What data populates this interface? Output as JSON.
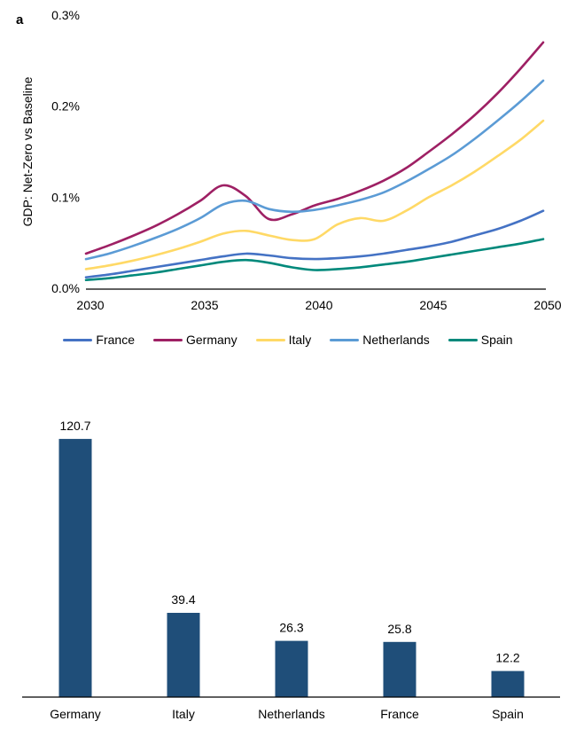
{
  "panel_label": "a",
  "chart_data": [
    {
      "type": "line",
      "title": "",
      "xlabel": "",
      "ylabel": "GDP: Net-Zero vs Baseline",
      "x": [
        2030,
        2031,
        2032,
        2033,
        2034,
        2035,
        2036,
        2037,
        2038,
        2039,
        2040,
        2041,
        2042,
        2043,
        2044,
        2045,
        2046,
        2047,
        2048,
        2049,
        2050
      ],
      "x_tick_values": [
        2030,
        2035,
        2040,
        2045,
        2050
      ],
      "x_tick_labels": [
        "2030",
        "2035",
        "2040",
        "2045",
        "2050"
      ],
      "y_tick_values": [
        0,
        0.1,
        0.2,
        0.3
      ],
      "y_tick_labels": [
        "0.0%",
        "0.1%",
        "0.2%",
        "0.3%"
      ],
      "ylim": [
        0,
        0.3
      ],
      "grid": false,
      "legend_position": "bottom",
      "series": [
        {
          "name": "France",
          "color": "#4472C4",
          "values": [
            0.012,
            0.015,
            0.019,
            0.023,
            0.027,
            0.031,
            0.035,
            0.038,
            0.036,
            0.033,
            0.032,
            0.033,
            0.035,
            0.038,
            0.042,
            0.046,
            0.051,
            0.058,
            0.065,
            0.074,
            0.085
          ]
        },
        {
          "name": "Germany",
          "color": "#9E2064",
          "values": [
            0.038,
            0.047,
            0.057,
            0.068,
            0.081,
            0.096,
            0.113,
            0.101,
            0.076,
            0.081,
            0.091,
            0.098,
            0.107,
            0.118,
            0.132,
            0.15,
            0.169,
            0.19,
            0.214,
            0.241,
            0.27
          ]
        },
        {
          "name": "Italy",
          "color": "#FFD966",
          "values": [
            0.021,
            0.025,
            0.03,
            0.036,
            0.043,
            0.051,
            0.06,
            0.063,
            0.058,
            0.053,
            0.054,
            0.07,
            0.077,
            0.074,
            0.085,
            0.1,
            0.113,
            0.128,
            0.145,
            0.163,
            0.184
          ]
        },
        {
          "name": "Netherlands",
          "color": "#5B9BD5",
          "values": [
            0.032,
            0.038,
            0.046,
            0.055,
            0.065,
            0.077,
            0.092,
            0.096,
            0.087,
            0.084,
            0.086,
            0.091,
            0.097,
            0.105,
            0.117,
            0.131,
            0.146,
            0.164,
            0.184,
            0.205,
            0.228
          ]
        },
        {
          "name": "Spain",
          "color": "#00897B",
          "values": [
            0.009,
            0.011,
            0.014,
            0.017,
            0.021,
            0.025,
            0.029,
            0.031,
            0.028,
            0.023,
            0.02,
            0.021,
            0.023,
            0.026,
            0.029,
            0.033,
            0.037,
            0.041,
            0.045,
            0.049,
            0.054
          ]
        }
      ]
    },
    {
      "type": "bar",
      "title": "",
      "xlabel": "",
      "ylabel": "",
      "categories": [
        "Germany",
        "Italy",
        "Netherlands",
        "France",
        "Spain"
      ],
      "values": [
        120.7,
        39.4,
        26.3,
        25.8,
        12.2
      ],
      "value_labels": [
        "120.7",
        "39.4",
        "26.3",
        "25.8",
        "12.2"
      ],
      "bar_color": "#1F4E79",
      "grid": false
    }
  ]
}
